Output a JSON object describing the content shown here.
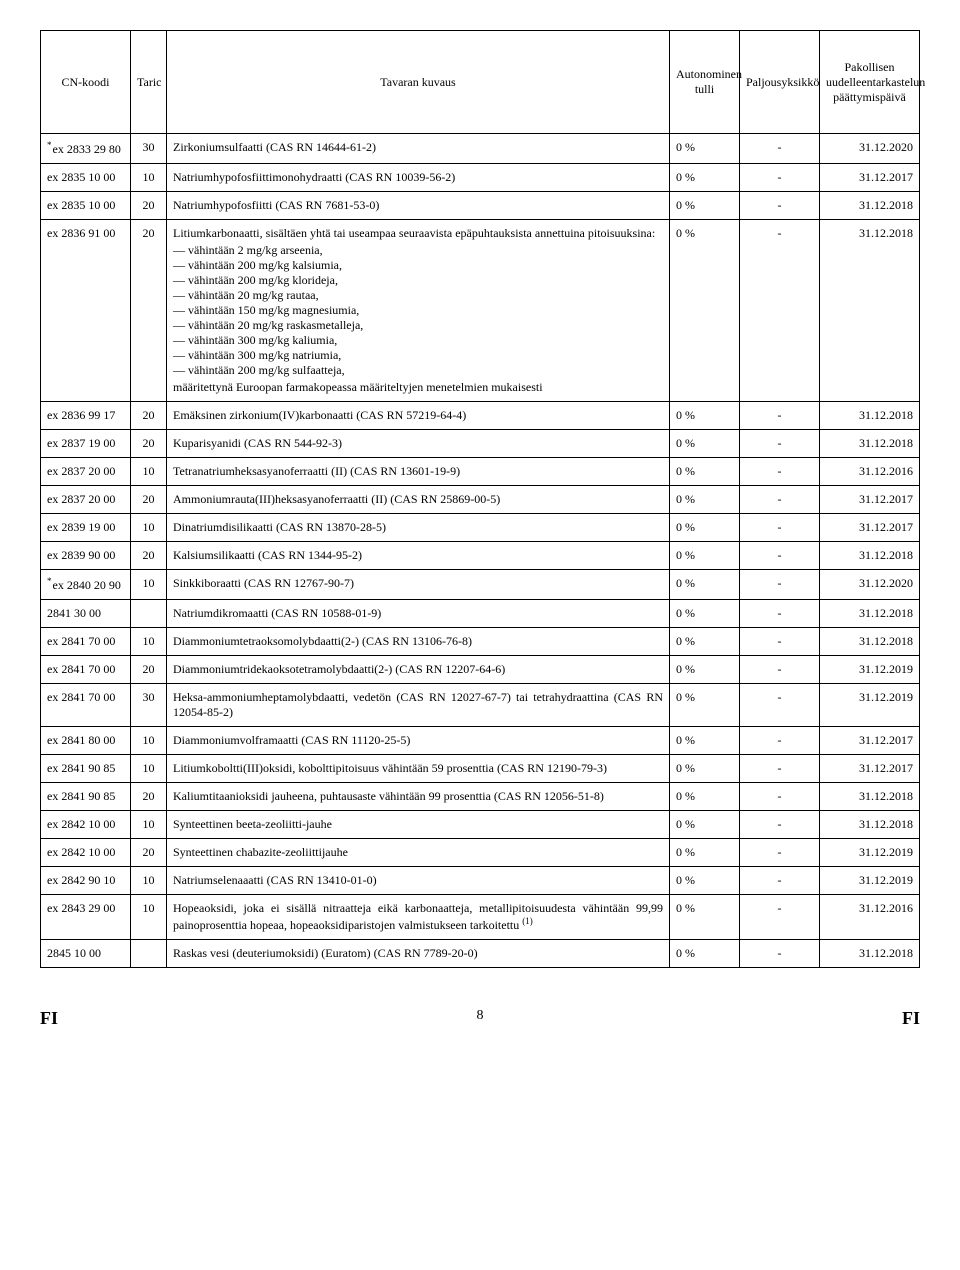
{
  "header": {
    "cn": "CN-koodi",
    "taric": "Taric",
    "desc": "Tavaran kuvaus",
    "tulli": "Autonominen tulli",
    "palj": "Paljousyksikkö",
    "date": "Pakollisen uudelleentarkastelun päättymispäivä"
  },
  "rows": [
    {
      "cn": "ex 2833 29 80",
      "star": true,
      "taric": "30",
      "desc": "Zirkoniumsulfaatti (CAS RN 14644-61-2)",
      "tulli": "0 %",
      "palj": "-",
      "date": "31.12.2020"
    },
    {
      "cn": "ex 2835 10 00",
      "taric": "10",
      "desc": "Natriumhypofosfiittimonohydraatti (CAS RN 10039-56-2)",
      "tulli": "0 %",
      "palj": "-",
      "date": "31.12.2017"
    },
    {
      "cn": "ex 2835 10 00",
      "taric": "20",
      "desc": "Natriumhypofosfiitti (CAS RN 7681-53-0)",
      "tulli": "0 %",
      "palj": "-",
      "date": "31.12.2018"
    },
    {
      "cn": "ex 2836 91 00",
      "taric": "20",
      "desc_lead": "Litiumkarbonaatti, sisältäen yhtä tai useampaa seuraavista epäpuhtauksista annettuina pitoisuuksina:",
      "bullets": [
        "vähintään 2 mg/kg arseenia,",
        "vähintään 200 mg/kg kalsiumia,",
        "vähintään 200 mg/kg klorideja,",
        "vähintään 20 mg/kg rautaa,",
        "vähintään 150 mg/kg magnesiumia,",
        "vähintään 20 mg/kg raskasmetalleja,",
        "vähintään 300 mg/kg kaliumia,",
        "vähintään 300 mg/kg natriumia,",
        "vähintään 200 mg/kg sulfaatteja,"
      ],
      "desc_tail": "määritettynä Euroopan farmakopeassa määriteltyjen menetelmien mukaisesti",
      "tulli": "0 %",
      "palj": "-",
      "date": "31.12.2018"
    },
    {
      "cn": "ex 2836 99 17",
      "taric": "20",
      "desc": "Emäksinen zirkonium(IV)karbonaatti (CAS RN 57219-64-4)",
      "tulli": "0 %",
      "palj": "-",
      "date": "31.12.2018"
    },
    {
      "cn": "ex 2837 19 00",
      "taric": "20",
      "desc": "Kuparisyanidi (CAS RN 544-92-3)",
      "tulli": "0 %",
      "palj": "-",
      "date": "31.12.2018"
    },
    {
      "cn": "ex 2837 20 00",
      "taric": "10",
      "desc": "Tetranatriumheksasyanoferraatti (II) (CAS RN 13601-19-9)",
      "tulli": "0 %",
      "palj": "-",
      "date": "31.12.2016"
    },
    {
      "cn": "ex 2837 20 00",
      "taric": "20",
      "desc": "Ammoniumrauta(III)heksasyanoferraatti (II) (CAS RN 25869-00-5)",
      "tulli": "0 %",
      "palj": "-",
      "date": "31.12.2017"
    },
    {
      "cn": "ex 2839 19 00",
      "taric": "10",
      "desc": "Dinatriumdisilikaatti (CAS RN 13870-28-5)",
      "tulli": "0 %",
      "palj": "-",
      "date": "31.12.2017"
    },
    {
      "cn": "ex 2839 90 00",
      "taric": "20",
      "desc": "Kalsiumsilikaatti (CAS RN 1344-95-2)",
      "tulli": "0 %",
      "palj": "-",
      "date": "31.12.2018"
    },
    {
      "cn": "ex 2840 20 90",
      "star": true,
      "taric": "10",
      "desc": "Sinkkiboraatti (CAS RN 12767-90-7)",
      "tulli": "0 %",
      "palj": "-",
      "date": "31.12.2020"
    },
    {
      "cn": "2841 30 00",
      "taric": "",
      "desc": "Natriumdikromaatti (CAS RN 10588-01-9)",
      "tulli": "0 %",
      "palj": "-",
      "date": "31.12.2018"
    },
    {
      "cn": "ex 2841 70 00",
      "taric": "10",
      "desc": "Diammoniumtetraoksomolybdaatti(2-) (CAS RN 13106-76-8)",
      "tulli": "0 %",
      "palj": "-",
      "date": "31.12.2018"
    },
    {
      "cn": "ex 2841 70 00",
      "taric": "20",
      "desc": "Diammoniumtridekaoksotetramolybdaatti(2-) (CAS RN 12207-64-6)",
      "tulli": "0 %",
      "palj": "-",
      "date": "31.12.2019"
    },
    {
      "cn": "ex 2841 70 00",
      "taric": "30",
      "desc": "Heksa-ammoniumheptamolybdaatti, vedetön (CAS RN 12027-67-7) tai tetrahydraattina (CAS RN 12054-85-2)",
      "tulli": "0 %",
      "palj": "-",
      "date": "31.12.2019"
    },
    {
      "cn": "ex 2841 80 00",
      "taric": "10",
      "desc": "Diammoniumvolframaatti (CAS RN 11120-25-5)",
      "tulli": "0 %",
      "palj": "-",
      "date": "31.12.2017"
    },
    {
      "cn": "ex 2841 90 85",
      "taric": "10",
      "desc": "Litiumkoboltti(III)oksidi, kobolttipitoisuus vähintään 59 prosenttia (CAS RN 12190-79-3)",
      "tulli": "0 %",
      "palj": "-",
      "date": "31.12.2017"
    },
    {
      "cn": "ex 2841 90 85",
      "taric": "20",
      "desc": "Kaliumtitaanioksidi jauheena, puhtausaste vähintään 99 prosenttia (CAS RN 12056-51-8)",
      "tulli": "0 %",
      "palj": "-",
      "date": "31.12.2018"
    },
    {
      "cn": "ex 2842 10 00",
      "taric": "10",
      "desc": "Synteettinen beeta-zeoliitti-jauhe",
      "tulli": "0 %",
      "palj": "-",
      "date": "31.12.2018"
    },
    {
      "cn": "ex 2842 10 00",
      "taric": "20",
      "desc": "Synteettinen chabazite-zeoliittijauhe",
      "tulli": "0 %",
      "palj": "-",
      "date": "31.12.2019"
    },
    {
      "cn": "ex 2842 90 10",
      "taric": "10",
      "desc": "Natriumselenaaatti (CAS RN 13410-01-0)",
      "tulli": "0 %",
      "palj": "-",
      "date": "31.12.2019"
    },
    {
      "cn": "ex 2843 29 00",
      "taric": "10",
      "desc_html": "Hopeaoksidi, joka ei sisällä nitraatteja eikä karbonaatteja, metallipitoisuudesta vähintään 99,99 painoprosenttia hopeaa, hopeaoksidiparistojen valmistukseen tarkoitettu <sup>(1)</sup>",
      "tulli": "0 %",
      "palj": "-",
      "date": "31.12.2016"
    },
    {
      "cn": "2845 10 00",
      "taric": "",
      "desc": "Raskas vesi (deuteriumoksidi) (Euratom) (CAS RN 7789-20-0)",
      "tulli": "0 %",
      "palj": "-",
      "date": "31.12.2018"
    }
  ],
  "footer": {
    "left": "FI",
    "page": "8",
    "right": "FI"
  }
}
